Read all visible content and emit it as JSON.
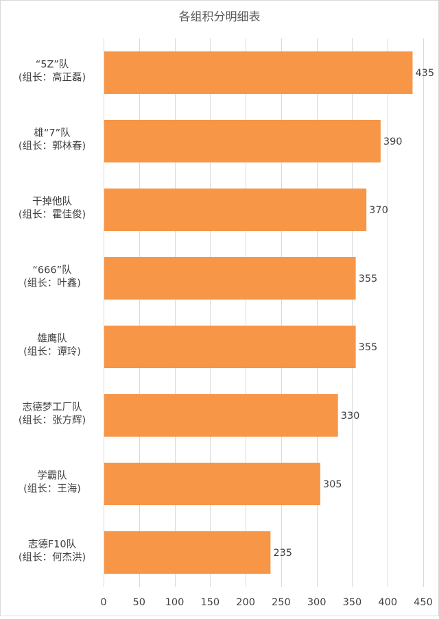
{
  "chart_data": {
    "type": "bar",
    "orientation": "horizontal",
    "title": "各组积分明细表",
    "categories": [
      [
        "“5Z”队",
        "(组长：高正磊)"
      ],
      [
        "雄“7”队",
        "(组长：郭林春)"
      ],
      [
        "干掉他队",
        "(组长：霍佳俊)"
      ],
      [
        "“666”队",
        "(组长：叶鑫)"
      ],
      [
        "雄鹰队",
        "(组长：谭玲)"
      ],
      [
        "志德梦工厂队",
        "(组长：张方辉)"
      ],
      [
        "学霸队",
        "(组长：王海)"
      ],
      [
        "志德F10队",
        "(组长：何杰洪)"
      ]
    ],
    "values": [
      435,
      390,
      370,
      355,
      355,
      330,
      305,
      235
    ],
    "xlim": [
      0,
      450
    ],
    "xticks": [
      0,
      50,
      100,
      150,
      200,
      250,
      300,
      350,
      400,
      450
    ],
    "grid": true,
    "data_labels": true,
    "bar_color": "#F79646"
  }
}
